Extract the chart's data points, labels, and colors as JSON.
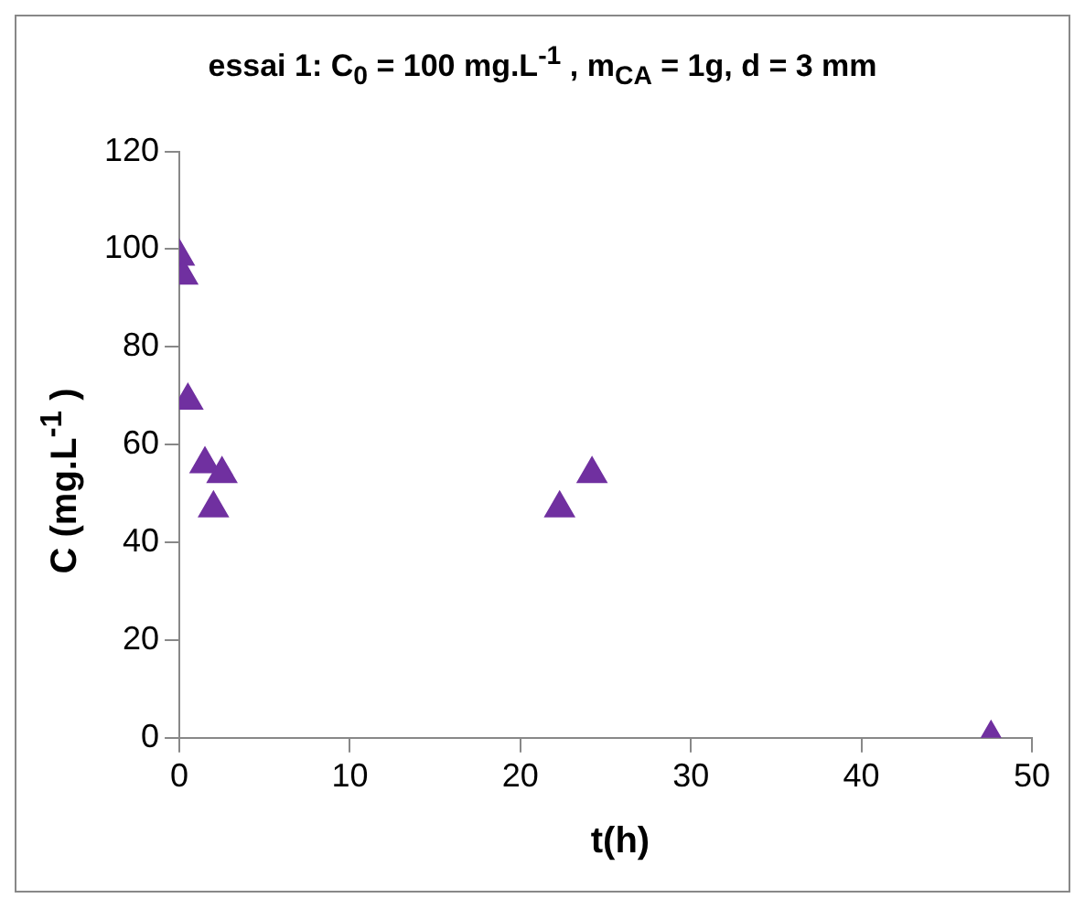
{
  "chart_data": {
    "type": "scatter",
    "title": "essai 1: C$_{0}$ = 100 mg.L$^{-1}$  , m$_{CA}$ = 1g, d = 3 mm",
    "xlabel": "t(h)",
    "ylabel": "C (mg.L$^{-1}$ )",
    "x": [
      0,
      0.2,
      0.5,
      1.5,
      2.5,
      2,
      22.3,
      24.2,
      47.6
    ],
    "series": [
      {
        "color": "#7030a0",
        "values": [
          98.5,
          94.6,
          69,
          56,
          54,
          47,
          47,
          54,
          0
        ]
      }
    ],
    "xlim": [
      0,
      50
    ],
    "xticks": [
      0,
      10,
      20,
      30,
      40,
      50
    ],
    "ylim": [
      0,
      120
    ],
    "yticks": [
      0,
      20,
      40,
      60,
      80,
      100,
      120
    ],
    "grid": false,
    "legend": false,
    "marker": "triangle"
  }
}
